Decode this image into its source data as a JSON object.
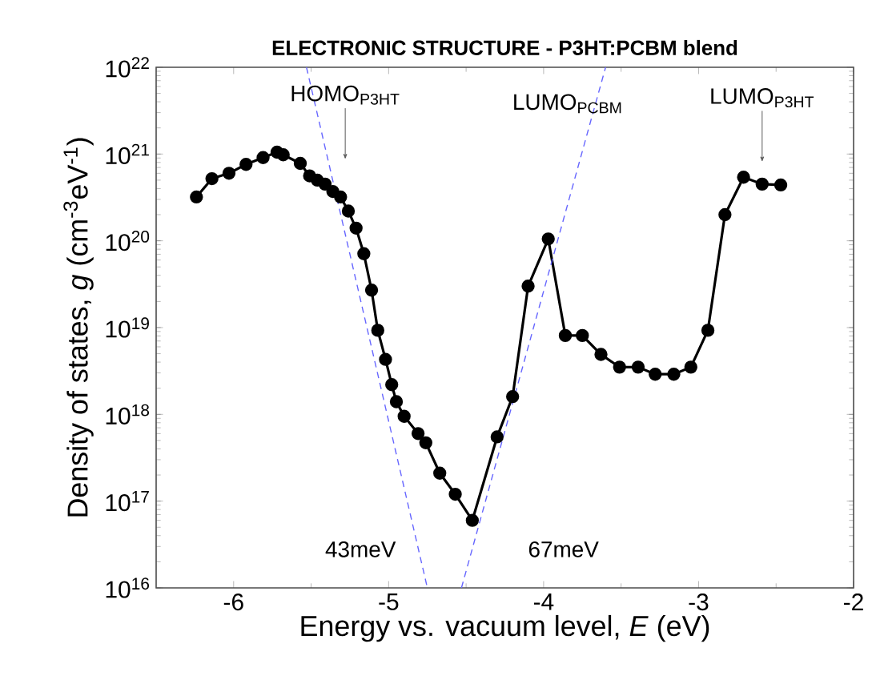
{
  "chart_data": {
    "type": "line",
    "title": "ELECTRONIC STRUCTURE - P3HT:PCBM blend",
    "xlabel": "Energy vs. vacuum level, *E* (eV)",
    "ylabel": "Density of states, *g* (cm$^{-3}$eV$^{-1}$)",
    "log": true,
    "marker": "circle",
    "line_style": "solid",
    "xlim": [
      -6.5,
      -2
    ],
    "xticks": [
      -6,
      -5,
      -4,
      -3,
      -2
    ],
    "ylim": [
      1e+16,
      1e+22
    ],
    "yticks": [
      {
        "value": 1e+16,
        "label": "10$^{16}$"
      },
      {
        "value": 1e+17,
        "label": "10$^{17}$"
      },
      {
        "value": 1e+18,
        "label": "10$^{18}$"
      },
      {
        "value": 1e+19,
        "label": "10$^{19}$"
      },
      {
        "value": 1e+20,
        "label": "10$^{20}$"
      },
      {
        "value": 1e+21,
        "label": "10$^{21}$"
      },
      {
        "value": 1e+22,
        "label": "10$^{22}$"
      }
    ],
    "series": [
      {
        "color": "#000000",
        "x": [
          -6.24,
          -6.14,
          -6.03,
          -5.92,
          -5.81,
          -5.72,
          -5.68,
          -5.57,
          -5.51,
          -5.46,
          -5.41,
          -5.36,
          -5.31,
          -5.26,
          -5.21,
          -5.16,
          -5.11,
          -5.07,
          -5.02,
          -4.98,
          -4.95,
          -4.9,
          -4.81,
          -4.76,
          -4.67,
          -4.57,
          -4.46,
          -4.3,
          -4.2,
          -4.1,
          -3.97,
          -3.86,
          -3.75,
          -3.63,
          -3.51,
          -3.39,
          -3.28,
          -3.16,
          -3.05,
          -2.94,
          -2.83,
          -2.71,
          -2.59,
          -2.47
        ],
        "values": [
          3.2e+20,
          5.2e+20,
          6e+20,
          7.6e+20,
          9.1e+20,
          1.05e+21,
          9.8e+20,
          7.8e+20,
          5.6e+20,
          5e+20,
          4.5e+20,
          3.7e+20,
          3.2e+20,
          2.2e+20,
          1.4e+20,
          7.1e+19,
          2.7e+19,
          9.3e+18,
          4.3e+18,
          2.2e+18,
          1.4e+18,
          9.5e+17,
          6e+17,
          4.7e+17,
          2.1e+17,
          1.2e+17,
          6e+16,
          5.5e+17,
          1.6e+18,
          3e+19,
          1.05e+20,
          8.1e+18,
          8.1e+18,
          4.9e+18,
          3.5e+18,
          3.5e+18,
          2.9e+18,
          2.9e+18,
          3.5e+18,
          9.3e+18,
          2e+20,
          5.4e+20,
          4.5e+20,
          4.4e+20
        ]
      },
      {
        "type": "line",
        "color": "#6666ff",
        "line_style": "dashed",
        "marker": "none",
        "x": [
          -5.53,
          -4.75
        ],
        "values": [
          1e+22,
          1e+16
        ]
      },
      {
        "type": "line",
        "color": "#6666ff",
        "line_style": "dashed",
        "marker": "none",
        "x": [
          -4.53,
          -3.6
        ],
        "values": [
          1e+16,
          1e+22
        ]
      }
    ],
    "annotations": [
      {
        "text": "HOMO$_{P3HT}$",
        "x": -5.28,
        "y": 8.7e+20
      },
      "LUMO$_{PCBM}$",
      {
        "text": "LUMO$_{P3HT}$",
        "x": -2.59,
        "y": 8.1e+20
      },
      "43meV",
      "67meV"
    ]
  }
}
